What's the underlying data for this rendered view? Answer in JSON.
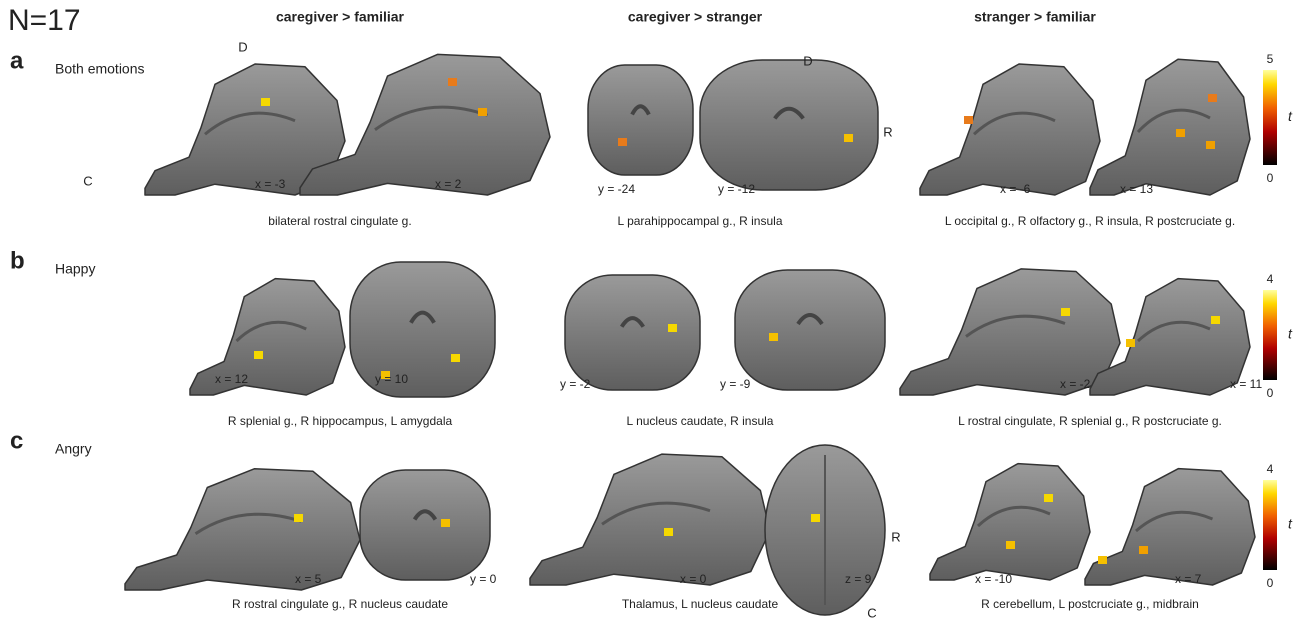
{
  "n_label": "N=17",
  "columns": [
    "caregiver > familiar",
    "caregiver > stranger",
    "stranger > familiar"
  ],
  "rows": [
    {
      "letter": "a",
      "label": "Both emotions",
      "slices": [
        "x = -3",
        "x = 2",
        "y = -24",
        "y = -12",
        "x = -6",
        "x = 13"
      ],
      "captions": [
        "bilateral rostral cingulate g.",
        "L parahippocampal g., R insula",
        "L occipital g., R olfactory g., R insula, R postcruciate g."
      ],
      "orientation": [
        "D",
        "C",
        "D",
        "R"
      ],
      "colorbar": {
        "max": 5,
        "min": 0,
        "label": "t"
      }
    },
    {
      "letter": "b",
      "label": "Happy",
      "slices": [
        "x = 12",
        "y = 10",
        "y = -2",
        "y = -9",
        "x = -2",
        "x = 11"
      ],
      "captions": [
        "R splenial g., R hippocampus, L amygdala",
        "L nucleus caudate, R insula",
        "L rostral cingulate, R splenial g., R postcruciate g."
      ],
      "orientation": [],
      "colorbar": {
        "max": 4,
        "min": 0,
        "label": "t"
      }
    },
    {
      "letter": "c",
      "label": "Angry",
      "slices": [
        "x = 5",
        "y = 0",
        "x = 0",
        "z = 9",
        "x = -10",
        "x = 7"
      ],
      "captions": [
        "R rostral cingulate g., R nucleus caudate",
        "Thalamus, L nucleus caudate",
        "R cerebellum, L postcruciate g., midbrain"
      ],
      "orientation": [
        "R",
        "C"
      ],
      "colorbar": {
        "max": 4,
        "min": 0,
        "label": "t"
      }
    }
  ]
}
